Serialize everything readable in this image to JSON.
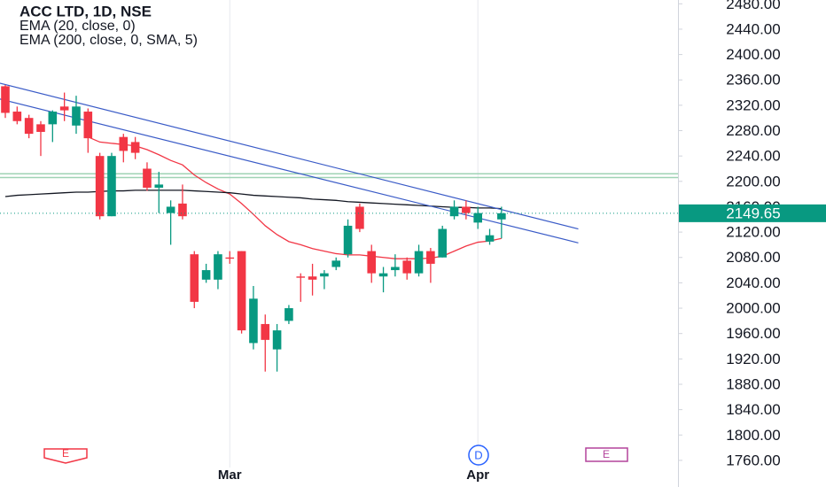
{
  "chart_data": {
    "type": "candlestick",
    "title": "ACC LTD, 1D, NSE",
    "categories": [
      null,
      null,
      null,
      null,
      null,
      null,
      null,
      null,
      null,
      null,
      null,
      null,
      null,
      null,
      null,
      null,
      null,
      null,
      null,
      "Mar",
      null,
      null,
      null,
      null,
      null,
      null,
      null,
      null,
      null,
      null,
      null,
      null,
      null,
      null,
      null,
      null,
      null,
      null,
      null,
      null,
      "Apr",
      null,
      null
    ],
    "open": [
      2350,
      2310,
      2300,
      2290,
      2290,
      2318,
      2288,
      2310,
      2240,
      2145,
      2270,
      2262,
      2220,
      2190,
      2150,
      2165,
      2085,
      2045,
      2045,
      2080,
      2090,
      1945,
      1975,
      1935,
      1980,
      2050,
      2050,
      2050,
      2065,
      2085,
      2160,
      2090,
      2050,
      2060,
      2075,
      2055,
      2090,
      2080,
      2145,
      2160,
      2135,
      2105,
      2140
    ],
    "high": [
      2352,
      2318,
      2305,
      2295,
      2312,
      2340,
      2335,
      2315,
      2245,
      2245,
      2275,
      2270,
      2230,
      2215,
      2170,
      2195,
      2090,
      2070,
      2090,
      2090,
      2090,
      2035,
      1990,
      1975,
      2005,
      2055,
      2070,
      2060,
      2080,
      2140,
      2165,
      2100,
      2065,
      2085,
      2080,
      2100,
      2095,
      2130,
      2170,
      2170,
      2160,
      2125,
      2160
    ],
    "low": [
      2300,
      2290,
      2268,
      2240,
      2262,
      2295,
      2275,
      2245,
      2140,
      2145,
      2230,
      2235,
      2185,
      2150,
      2100,
      2140,
      2000,
      2040,
      2030,
      2070,
      1960,
      1935,
      1900,
      1900,
      1975,
      2010,
      2020,
      2030,
      2060,
      2080,
      2120,
      2040,
      2025,
      2050,
      2045,
      2050,
      2040,
      2080,
      2140,
      2140,
      2125,
      2100,
      2110
    ],
    "close": [
      2308,
      2295,
      2275,
      2278,
      2310,
      2312,
      2318,
      2268,
      2145,
      2240,
      2248,
      2245,
      2190,
      2195,
      2160,
      2145,
      2010,
      2060,
      2085,
      2078,
      1965,
      2015,
      1950,
      1965,
      2000,
      2048,
      2045,
      2055,
      2075,
      2130,
      2125,
      2055,
      2055,
      2065,
      2055,
      2090,
      2070,
      2125,
      2160,
      2150,
      2150,
      2115,
      2149.65
    ],
    "up_color": "#089981",
    "down_color": "#f23645",
    "series": [
      {
        "name": "EMA (20, close, 0)",
        "color": "#f23645",
        "values": [
          null,
          null,
          null,
          null,
          null,
          null,
          null,
          2270,
          2262,
          2260,
          2258,
          2256,
          2250,
          2242,
          2233,
          2226,
          2210,
          2198,
          2188,
          2180,
          2165,
          2148,
          2130,
          2116,
          2105,
          2100,
          2094,
          2090,
          2086,
          2084,
          2084,
          2082,
          2080,
          2078,
          2078,
          2078,
          2079,
          2082,
          2090,
          2098,
          2104,
          2106,
          2110
        ]
      },
      {
        "name": "EMA (200, close, 0, SMA, 5)",
        "color": "#131722",
        "values": [
          2176,
          2178,
          2179,
          2180,
          2181,
          2182,
          2183,
          2183,
          2184,
          2185,
          2185,
          2186,
          2186,
          2186,
          2186,
          2186,
          2185,
          2184,
          2183,
          2182,
          2180,
          2178,
          2177,
          2176,
          2175,
          2174,
          2172,
          2171,
          2170,
          2168,
          2167,
          2166,
          2165,
          2164,
          2163,
          2162,
          2161,
          2160,
          2159,
          2159,
          2158,
          2158,
          2157
        ]
      }
    ],
    "trendlines": [
      {
        "x": [
          -0.5,
          48.5
        ],
        "values": [
          2355,
          2125
        ],
        "color": "#3a5bc7"
      },
      {
        "x": [
          -0.5,
          48.5
        ],
        "values": [
          2330,
          2103
        ],
        "color": "#3a5bc7"
      }
    ],
    "hlines": [
      2212,
      2206
    ],
    "hline_color": "#9fd3b5",
    "last_price": 2149.65,
    "ylim": [
      1718,
      2486
    ],
    "yticks": [
      {
        "value": 1760,
        "label": "1760.00"
      },
      {
        "value": 1800,
        "label": "1800.00"
      },
      {
        "value": 1840,
        "label": "1840.00"
      },
      {
        "value": 1880,
        "label": "1880.00"
      },
      {
        "value": 1920,
        "label": "1920.00"
      },
      {
        "value": 1960,
        "label": "1960.00"
      },
      {
        "value": 2000,
        "label": "2000.00"
      },
      {
        "value": 2040,
        "label": "2040.00"
      },
      {
        "value": 2080,
        "label": "2080.00"
      },
      {
        "value": 2120,
        "label": "2120.00"
      },
      {
        "value": 2160,
        "label": "2160.00"
      },
      {
        "value": 2200,
        "label": "2200.00"
      },
      {
        "value": 2240,
        "label": "2240.00"
      },
      {
        "value": 2280,
        "label": "2280.00"
      },
      {
        "value": 2320,
        "label": "2320.00"
      },
      {
        "value": 2360,
        "label": "2360.00"
      },
      {
        "value": 2400,
        "label": "2400.00"
      },
      {
        "value": 2440,
        "label": "2440.00"
      },
      {
        "value": 2480,
        "label": "2480.00"
      }
    ],
    "events": [
      "E",
      "D",
      "E"
    ]
  }
}
